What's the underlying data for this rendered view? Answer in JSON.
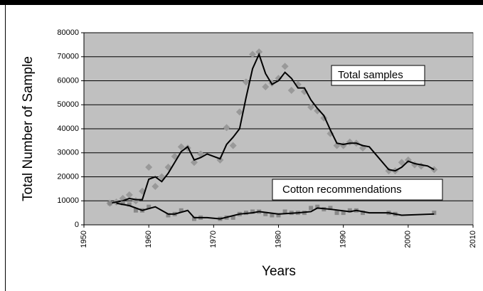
{
  "chart_data": {
    "type": "scatter",
    "ylabel": "Total Number of Sample",
    "xlabel": "Years",
    "xlim": [
      1950,
      2010
    ],
    "xticks": [
      1950,
      1960,
      1970,
      1980,
      1990,
      2000,
      2010
    ],
    "ylim": [
      0,
      80000
    ],
    "yticks": [
      0,
      10000,
      20000,
      30000,
      40000,
      50000,
      60000,
      70000,
      80000
    ],
    "grid": true,
    "annotations": [
      "Total samples",
      "Cotton recommendations"
    ],
    "series": [
      {
        "style": "marker",
        "marker": "diamond",
        "color": "#999999",
        "x": [
          1954,
          1955,
          1956,
          1957,
          1958,
          1959,
          1960,
          1961,
          1962,
          1963,
          1964,
          1965,
          1966,
          1967,
          1968,
          1971,
          1972,
          1973,
          1974,
          1975,
          1976,
          1977,
          1978,
          1979,
          1980,
          1981,
          1982,
          1983,
          1984,
          1985,
          1986,
          1987,
          1988,
          1989,
          1990,
          1991,
          1992,
          1993,
          1997,
          1998,
          1999,
          2000,
          2001,
          2002,
          2004
        ],
        "values": [
          9000,
          9500,
          11000,
          12500,
          10000,
          14000,
          24000,
          16000,
          20000,
          24000,
          28500,
          32500,
          32000,
          26000,
          29500,
          27000,
          40500,
          33000,
          47000,
          59500,
          71000,
          72000,
          57500,
          59000,
          61000,
          66000,
          56000,
          58500,
          55500,
          49000,
          47500,
          44500,
          38000,
          33000,
          33000,
          34500,
          34000,
          32000,
          22500,
          22500,
          26000,
          27000,
          25000,
          24500,
          23000
        ]
      },
      {
        "style": "line",
        "color": "#000000",
        "x": [
          1954,
          1955,
          1956,
          1957,
          1958,
          1959,
          1960,
          1961,
          1962,
          1963,
          1964,
          1965,
          1966,
          1967,
          1968,
          1969,
          1971,
          1972,
          1973,
          1974,
          1975,
          1976,
          1977,
          1978,
          1979,
          1980,
          1981,
          1982,
          1983,
          1984,
          1985,
          1986,
          1987,
          1988,
          1989,
          1990,
          1991,
          1992,
          1993,
          1994,
          1997,
          1998,
          1999,
          2000,
          2001,
          2002,
          2003,
          2004
        ],
        "values": [
          9000,
          9500,
          10000,
          11000,
          10500,
          10500,
          19000,
          20000,
          18000,
          21500,
          26000,
          30500,
          32500,
          27000,
          28000,
          29500,
          27500,
          33500,
          36500,
          40000,
          53000,
          65000,
          71000,
          63000,
          58500,
          60000,
          63500,
          61000,
          57000,
          57000,
          52000,
          48500,
          45500,
          39500,
          34000,
          33500,
          34000,
          34000,
          33000,
          32500,
          23000,
          22500,
          24000,
          26500,
          25500,
          25000,
          24500,
          23000
        ]
      },
      {
        "style": "marker",
        "marker": "square",
        "color": "#888888",
        "x": [
          1954,
          1956,
          1957,
          1958,
          1959,
          1960,
          1963,
          1964,
          1965,
          1967,
          1968,
          1971,
          1972,
          1973,
          1974,
          1975,
          1976,
          1977,
          1978,
          1979,
          1980,
          1981,
          1982,
          1983,
          1984,
          1985,
          1986,
          1987,
          1988,
          1989,
          1990,
          1991,
          1992,
          1993,
          1997,
          1998,
          2004
        ],
        "values": [
          9000,
          9000,
          8500,
          6000,
          6000,
          7500,
          4000,
          4500,
          6000,
          2500,
          3000,
          2500,
          3000,
          3000,
          4500,
          5000,
          5500,
          5500,
          4500,
          4000,
          4000,
          5500,
          5000,
          5000,
          5000,
          7000,
          7500,
          6500,
          7000,
          5000,
          5000,
          6000,
          6000,
          5000,
          5000,
          4500,
          5000
        ]
      },
      {
        "style": "line",
        "color": "#000000",
        "x": [
          1955,
          1957,
          1959,
          1961,
          1963,
          1964,
          1966,
          1967,
          1969,
          1971,
          1974,
          1976,
          1977,
          1980,
          1983,
          1985,
          1986,
          1988,
          1991,
          1992,
          1994,
          1997,
          1999,
          2004
        ],
        "values": [
          9000,
          8000,
          6000,
          7500,
          4500,
          4500,
          6000,
          3000,
          3000,
          2500,
          4500,
          5000,
          5500,
          4500,
          5000,
          5500,
          7000,
          6500,
          5500,
          6000,
          5000,
          5000,
          4000,
          4500
        ]
      }
    ]
  }
}
